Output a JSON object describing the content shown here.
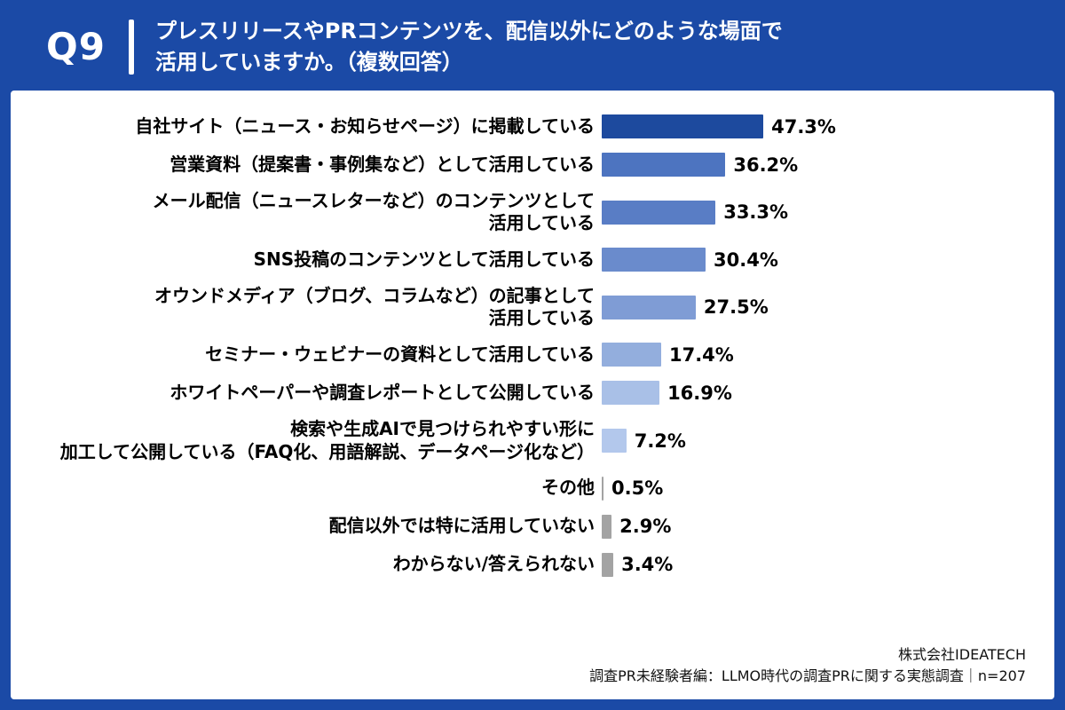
{
  "header": {
    "question_number": "Q9",
    "question_text": "プレスリリースやPRコンテンツを、配信以外にどのような場面で\n活用していますか。（複数回答）"
  },
  "footer": {
    "company": "株式会社IDEATECH",
    "caption": "調査PR未経験者編：LLMO時代の調査PRに関する実態調査｜n=207"
  },
  "colors": {
    "frame": "#1b4aa6",
    "text": "#000000",
    "gray_bar": "#a3a3a3"
  },
  "chart_data": {
    "type": "bar",
    "orientation": "horizontal",
    "title": "プレスリリースやPRコンテンツを、配信以外にどのような場面で活用していますか。（複数回答）",
    "xlabel": "",
    "ylabel": "",
    "xlim": [
      0,
      50
    ],
    "grid": false,
    "legend": false,
    "categories": [
      "自社サイト（ニュース・お知らせページ）に掲載している",
      "営業資料（提案書・事例集など）として活用している",
      "メール配信（ニュースレターなど）のコンテンツとして\n活用している",
      "SNS投稿のコンテンツとして活用している",
      "オウンドメディア（ブログ、コラムなど）の記事として\n活用している",
      "セミナー・ウェビナーの資料として活用している",
      "ホワイトペーパーや調査レポートとして公開している",
      "検索や生成AIで見つけられやすい形に\n加工して公開している（FAQ化、用語解説、データページ化など）",
      "その他",
      "配信以外では特に活用していない",
      "わからない/答えられない"
    ],
    "values": [
      47.3,
      36.2,
      33.3,
      30.4,
      27.5,
      17.4,
      16.9,
      7.2,
      0.5,
      2.9,
      3.4
    ],
    "value_labels": [
      "47.3%",
      "36.2%",
      "33.3%",
      "30.4%",
      "27.5%",
      "17.4%",
      "16.9%",
      "7.2%",
      "0.5%",
      "2.9%",
      "3.4%"
    ],
    "bar_colors": [
      "#1d4a9e",
      "#4d74c0",
      "#597dc5",
      "#6a8bcc",
      "#7f9cd5",
      "#93aedd",
      "#a9c0e7",
      "#b3c8ec",
      "#a3a3a3",
      "#a3a3a3",
      "#a3a3a3"
    ]
  }
}
